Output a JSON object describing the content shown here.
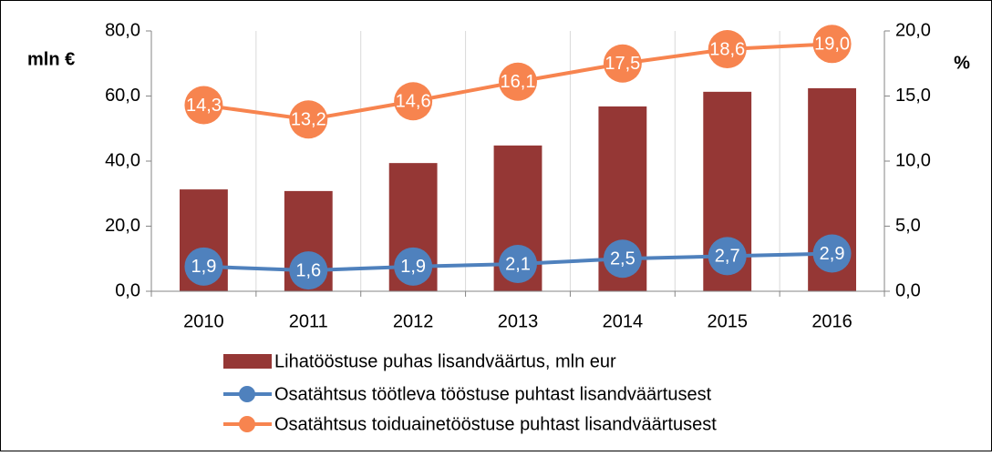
{
  "chart_data": {
    "type": "bar",
    "categories": [
      "2010",
      "2011",
      "2012",
      "2013",
      "2014",
      "2015",
      "2016"
    ],
    "ylabel": "mln €",
    "y2label": "%",
    "ylim": [
      0,
      80
    ],
    "yticks": [
      {
        "value": 0,
        "label": "0,0"
      },
      {
        "value": 20,
        "label": "20,0"
      },
      {
        "value": 40,
        "label": "40,0"
      },
      {
        "value": 60,
        "label": "60,0"
      },
      {
        "value": 80,
        "label": "80,0"
      }
    ],
    "y2lim": [
      0,
      20
    ],
    "y2ticks": [
      {
        "value": 0,
        "label": "0,0"
      },
      {
        "value": 5,
        "label": "5,0"
      },
      {
        "value": 10,
        "label": "10,0"
      },
      {
        "value": 15,
        "label": "15,0"
      },
      {
        "value": 20,
        "label": "20,0"
      }
    ],
    "xgrid": true,
    "series": [
      {
        "name": "Lihatööstuse puhas lisandväärtus, mln eur",
        "type": "bar",
        "color": "#953735",
        "values": [
          31.3,
          30.8,
          39.4,
          44.8,
          56.8,
          61.3,
          62.4
        ]
      },
      {
        "name": "Osatähtsus töötleva tööstuse puhtast lisandväärtusest",
        "type": "line",
        "axis": "y2",
        "color": "#4f81bd",
        "values": [
          1.9,
          1.6,
          1.9,
          2.1,
          2.5,
          2.7,
          2.9
        ],
        "value_labels": [
          "1,9",
          "1,6",
          "1,9",
          "2,1",
          "2,5",
          "2,7",
          "2,9"
        ]
      },
      {
        "name": "Osatähtsus toiduainetööstuse puhtast lisandväärtusest",
        "type": "line",
        "axis": "y2",
        "color": "#f7844f",
        "values": [
          14.3,
          13.2,
          14.6,
          16.1,
          17.5,
          18.6,
          19.0
        ],
        "value_labels": [
          "14,3",
          "13,2",
          "14,6",
          "16,1",
          "17,5",
          "18,6",
          "19,0"
        ]
      }
    ]
  }
}
